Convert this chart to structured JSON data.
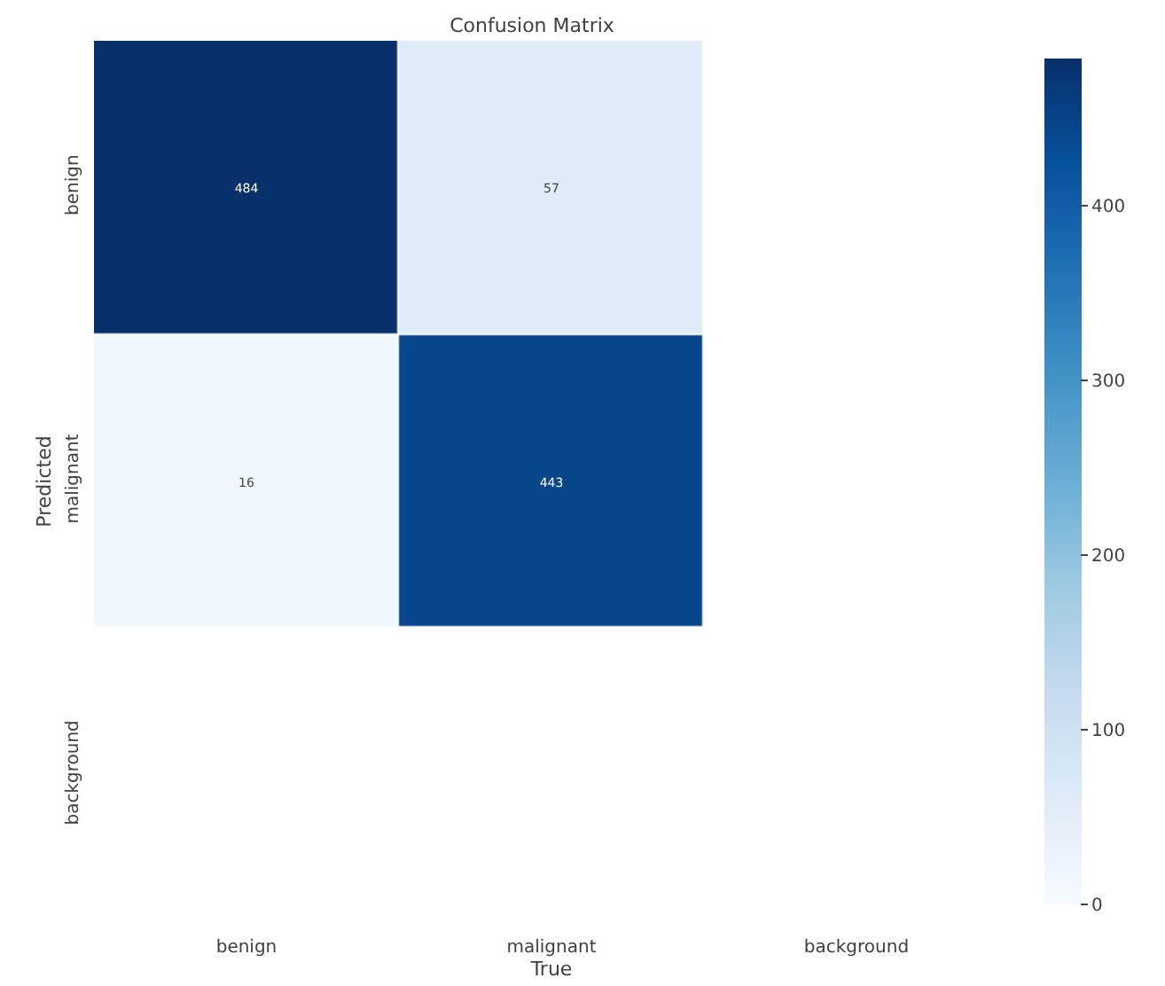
{
  "chart_data": {
    "type": "heatmap",
    "title": "Confusion Matrix",
    "xlabel": "True",
    "ylabel": "Predicted",
    "categories": [
      "benign",
      "malignant",
      "background"
    ],
    "y_categories": [
      "benign",
      "malignant",
      "background"
    ],
    "cells": [
      [
        484,
        57,
        null
      ],
      [
        16,
        443,
        null
      ],
      [
        null,
        null,
        null
      ]
    ],
    "clim": [
      0,
      484
    ],
    "cticks": [
      0,
      100,
      200,
      300,
      400
    ],
    "data_labels": true
  }
}
